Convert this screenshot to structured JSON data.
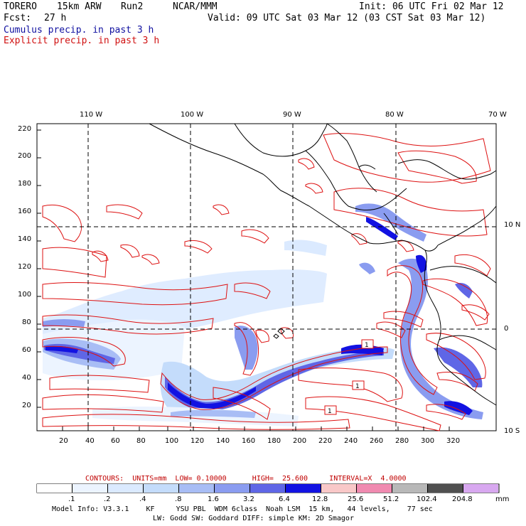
{
  "header": {
    "model": "TORERO",
    "grid": "15km ARW",
    "run": "Run2",
    "org": "NCAR/MMM",
    "init": "Init: 06 UTC Fri 02 Mar 12",
    "fcst_label": "Fcst:",
    "fcst_value": "27 h",
    "valid": "Valid: 09 UTC Sat 03 Mar 12 (03 CST Sat 03 Mar 12)",
    "cumulus": "Cumulus precip. in past 3 h",
    "explicit": "Explicit precip. in past 3 h"
  },
  "map": {
    "lon_labels": [
      "110 W",
      "100 W",
      "90 W",
      "80 W",
      "70 W"
    ],
    "lat_labels": [
      "10 N",
      "0",
      "10 S"
    ],
    "y_ticks": [
      "220",
      "200",
      "180",
      "160",
      "140",
      "120",
      "100",
      "80",
      "60",
      "40",
      "20"
    ],
    "x_ticks": [
      "20",
      "40",
      "60",
      "80",
      "100",
      "120",
      "140",
      "160",
      "180",
      "200",
      "220",
      "240",
      "260",
      "280",
      "300",
      "320"
    ],
    "box_labels": [
      "1",
      "1",
      "1"
    ],
    "colors": {
      "contour": "#dd1111",
      "coast": "#000000",
      "grid": "#000000"
    }
  },
  "legend": {
    "contours_text": "CONTOURS:  UNITS=mm  LOW= 0.10000      HIGH=  25.600     INTERVAL=X  4.0000",
    "units": "mm",
    "levels": [
      ".1",
      ".2",
      ".4",
      ".8",
      "1.6",
      "3.2",
      "6.4",
      "12.8",
      "25.6",
      "51.2",
      "102.4",
      "204.8"
    ],
    "colors": [
      "#ffffff",
      "#ecf4ff",
      "#dbeaff",
      "#c4dcfb",
      "#a8bdf5",
      "#8a9cf0",
      "#5f66e6",
      "#1212e2",
      "#f9c8c8",
      "#f08ab0",
      "#b8b8b8",
      "#505050",
      "#d8a8f0"
    ]
  },
  "footer": {
    "line1": "Model Info: V3.3.1    KF     YSU PBL  WDM 6class  Noah LSM  15 km,   44 levels,    77 sec",
    "line2": "LW: Godd SW: Goddard DIFF: simple KM: 2D Smagor"
  }
}
